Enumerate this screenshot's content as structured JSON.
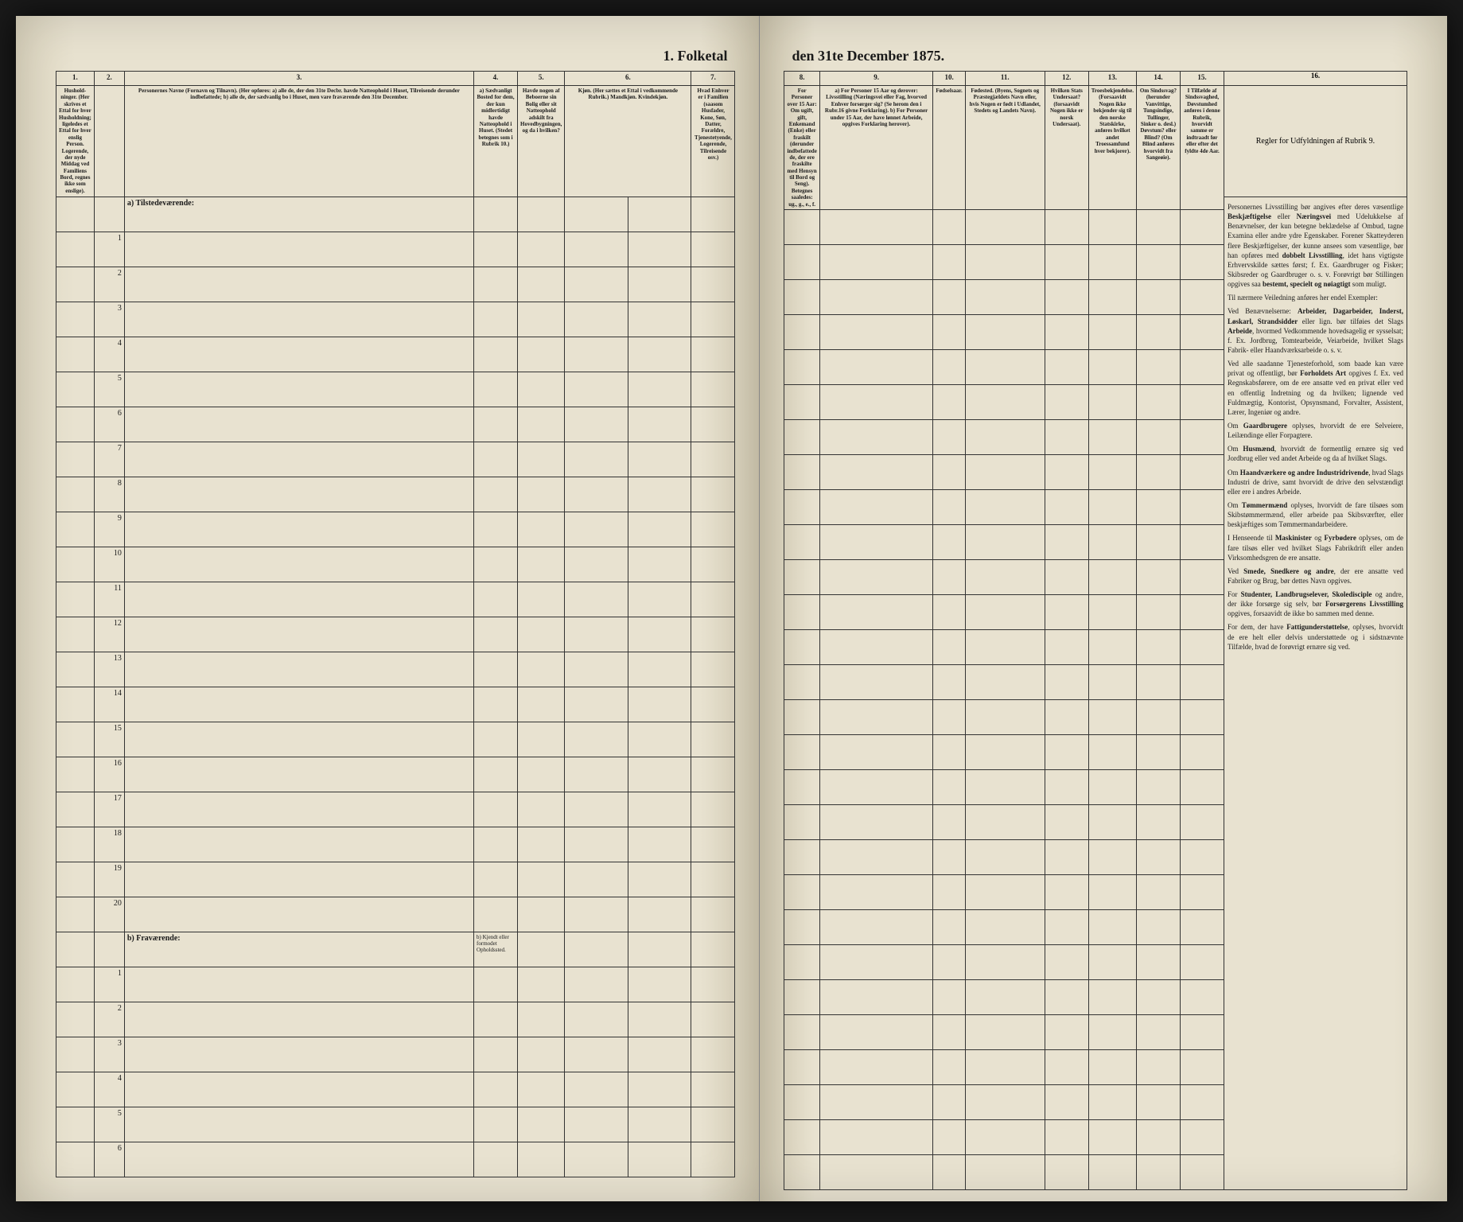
{
  "document": {
    "title_left": "1. Folketal",
    "title_right": "den 31te December 1875.",
    "background_color": "#e8e2d0",
    "ink_color": "#1a1a1a",
    "border_color": "#333333"
  },
  "columns_left": [
    {
      "num": "1.",
      "header": "Hushold-ninger. (Her skrives et Ettal for hver Husholdning; ligeledes et Ettal for hver enslig Person. Logerende, der nyde Middag ved Familiens Bord, regnes ikke som enslige)."
    },
    {
      "num": "2.",
      "header": ""
    },
    {
      "num": "3.",
      "header": "Personernes Navne (Fornavn og Tilnavn). (Her opføres: a) alle de, der den 31te Decbr. havde Natteophold i Huset, Tilreisende derunder indbefattede; b) alle de, der sædvanlig bo i Huset, men vare fraværende den 31te December."
    },
    {
      "num": "4.",
      "header": "a) Sædvanligt Bosted for dem, der kun midlertidigt havde Natteophold i Huset. (Stedet betegnes som i Rubrik 10.)"
    },
    {
      "num": "5.",
      "header": "Havde nogen af Beboerne sin Bolig eller sit Natteophold adskilt fra Hovedbygningen, og da i hvilken?"
    },
    {
      "num": "6.",
      "header": "Kjøn. (Her sættes et Ettal i vedkommende Rubrik.) Mandkjøn. Kvindekjøn."
    },
    {
      "num": "7.",
      "header": "Hvad Enhver er i Familien (saasom Husfader, Kone, Søn, Datter, Forældre, Tjenestetyende, Logerende, Tilreisende osv.)"
    }
  ],
  "columns_right": [
    {
      "num": "8.",
      "header": "For Personer over 15 Aar: Om ugift, gift, Enkemand (Enke) eller fraskilt (derunder indbefattede de, der ere fraskilte med Hensyn til Bord og Seng). Betegnes saaledes: ug., g., e., f."
    },
    {
      "num": "9.",
      "header": "a) For Personer 15 Aar og derover: Livsstilling (Næringsvei eller Fag, hvorved Enhver forsørger sig? (Se herom den i Rubr.16 givne Forklaring). b) For Personer under 15 Aar, der have lønnet Arbeide, opgives Forklaring herover)."
    },
    {
      "num": "10.",
      "header": "Fødselsaar."
    },
    {
      "num": "11.",
      "header": "Fødested. (Byens, Sognets og Præstegjældets Navn eller, hvis Nogen er født i Udlandet, Stedets og Landets Navn)."
    },
    {
      "num": "12.",
      "header": "Hvilken Stats Undersaat? (forsaavidt Nogen ikke er norsk Undersaat)."
    },
    {
      "num": "13.",
      "header": "Troesbekjendelse. (Forsaavidt Nogen ikke bekjender sig til den norske Statskirke, anføres hvilket andet Troessamfund hver bekjorer)."
    },
    {
      "num": "14.",
      "header": "Om Sindssvag? (herunder Vanvittige, Tungsindige, Tullinger, Sinker o. desl.) Døvstum? eller Blind? (Om Blind anføres hvorvidt fra Sangeøie)."
    },
    {
      "num": "15.",
      "header": "I Tilfælde af Sindssvaghed, Døvstumhed anføres i denne Rubrik, hvorvidt samme er indtraadt før eller efter det fyldte 4de Aar."
    }
  ],
  "column_16": {
    "num": "16.",
    "header": "Regler for Udfyldningen af Rubrik 9."
  },
  "sections": {
    "a_label": "a) Tilstedeværende:",
    "b_label": "b) Fraværende:",
    "b_note": "b) Kjendt eller formodet Opholdssted.",
    "rows_a": [
      1,
      2,
      3,
      4,
      5,
      6,
      7,
      8,
      9,
      10,
      11,
      12,
      13,
      14,
      15,
      16,
      17,
      18,
      19,
      20
    ],
    "rows_b": [
      1,
      2,
      3,
      4,
      5,
      6
    ]
  },
  "instructions": {
    "paragraphs": [
      "Personernes Livsstilling bør angives efter deres væsentlige <b>Beskjæftigelse</b> eller <b>Næringsvei</b> med Udelukkelse af Benævnelser, der kun betegne beklædelse af Ombud, tagne Examina eller andre ydre Egenskaber. Forener Skatteyderen flere Beskjæftigelser, der kunne ansees som væsentlige, bør han opføres med <b>dobbelt Livsstilling</b>, idet hans vigtigste Erhvervskilde sættes først; f. Ex. Gaardbruger og Fisker; Skibsreder og Gaardbruger o. s. v. Forøvrigt bør Stillingen opgives saa <b>bestemt, specielt og nøiagtigt</b> som muligt.",
      "Til nærmere Veiledning anføres her endel Exempler:",
      "Ved Benævnelserne: <b>Arbeider, Dagarbeider, Inderst, Løskarl, Strandsidder</b> eller lign. bør tilføies det Slags <b>Arbeide</b>, hvormed Vedkommende hovedsagelig er sysselsat; f. Ex. Jordbrug, Tomtearbeide, Veiarbeide, hvilket Slags Fabrik- eller Haandværksarbeide o. s. v.",
      "Ved alle saadanne Tjenesteforhold, som baade kan være privat og offentligt, bør <b>Forholdets Art</b> opgives f. Ex. ved Regnskabsførere, om de ere ansatte ved en privat eller ved en offentlig Indretning og da hvilken; lignende ved Fuldmægtig, Kontorist, Opsynsmand, Forvalter, Assistent, Lærer, Ingeniør og andre.",
      "Om <b>Gaardbrugere</b> oplyses, hvorvidt de ere Selveiere, Leilændinge eller Forpagtere.",
      "Om <b>Husmænd</b>, hvorvidt de formentlig ernære sig ved Jordbrug eller ved andet Arbeide og da af hvilket Slags.",
      "Om <b>Haandværkere og andre Industridrivende</b>, hvad Slags Industri de drive, samt hvorvidt de drive den selvstændigt eller ere i andres Arbeide.",
      "Om <b>Tømmermænd</b> oplyses, hvorvidt de fare tilsøes som Skibstømmermænd, eller arbeide paa Skibsværfter, eller beskjæftiges som Tømmermandarbeidere.",
      "I Henseende til <b>Maskinister</b> og <b>Fyrbødere</b> oplyses, om de fare tilsøs eller ved hvilket Slags Fabrikdrift eller anden Virksomhedsgren de ere ansatte.",
      "Ved <b>Smede, Snedkere og andre</b>, der ere ansatte ved Fabriker og Brug, bør dettes Navn opgives.",
      "For <b>Studenter, Landbrugselever, Skoledisciple</b> og andre, der ikke forsørge sig selv, bør <b>Forsørgerens Livsstilling</b> opgives, forsaavidt de ikke bo sammen med denne.",
      "For dem, der have <b>Fattigunderstøttelse</b>, oplyses, hvorvidt de ere helt eller delvis understøttede og i sidstnævnte Tilfælde, hvad de forøvrigt ernære sig ved."
    ]
  }
}
